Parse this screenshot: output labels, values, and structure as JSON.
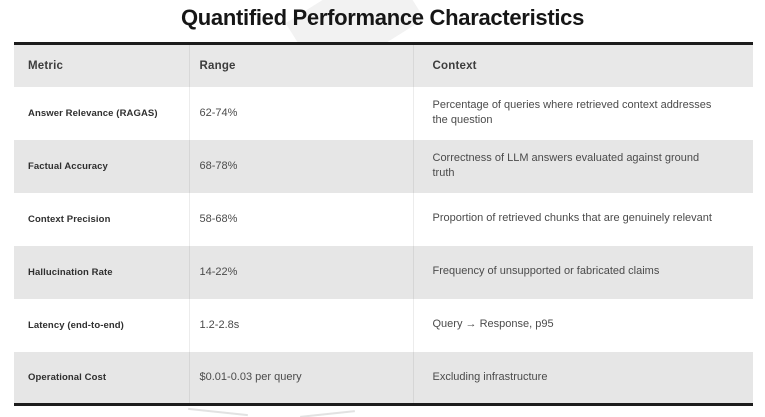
{
  "title": "Quantified Performance Characteristics",
  "table": {
    "columns": [
      "Metric",
      "Range",
      "Context"
    ],
    "rows": [
      {
        "metric": "Answer Relevance (RAGAS)",
        "range": "62-74%",
        "context": "Percentage of queries where retrieved context addresses the question"
      },
      {
        "metric": "Factual Accuracy",
        "range": "68-78%",
        "context": "Correctness of LLM answers evaluated against ground truth"
      },
      {
        "metric": "Context Precision",
        "range": "58-68%",
        "context": "Proportion of retrieved chunks that are genuinely relevant"
      },
      {
        "metric": "Hallucination Rate",
        "range": "14-22%",
        "context": "Frequency of unsupported or fabricated claims"
      },
      {
        "metric": "Latency (end-to-end)",
        "range": "1.2-2.8s",
        "context": "Query → Response, p95"
      },
      {
        "metric": "Operational Cost",
        "range": "$0.01-0.03 per query",
        "context": "Excluding infrastructure"
      }
    ]
  },
  "colors": {
    "border_black": "#1c1c1c",
    "header_bg": "#e8e8e8",
    "row_alt_bg": "#e6e6e6",
    "row_bg": "#ffffff",
    "title_text": "#161616",
    "header_text": "#3d3d3d",
    "metric_text": "#2f2f2f",
    "body_text": "#4b4b4b"
  }
}
